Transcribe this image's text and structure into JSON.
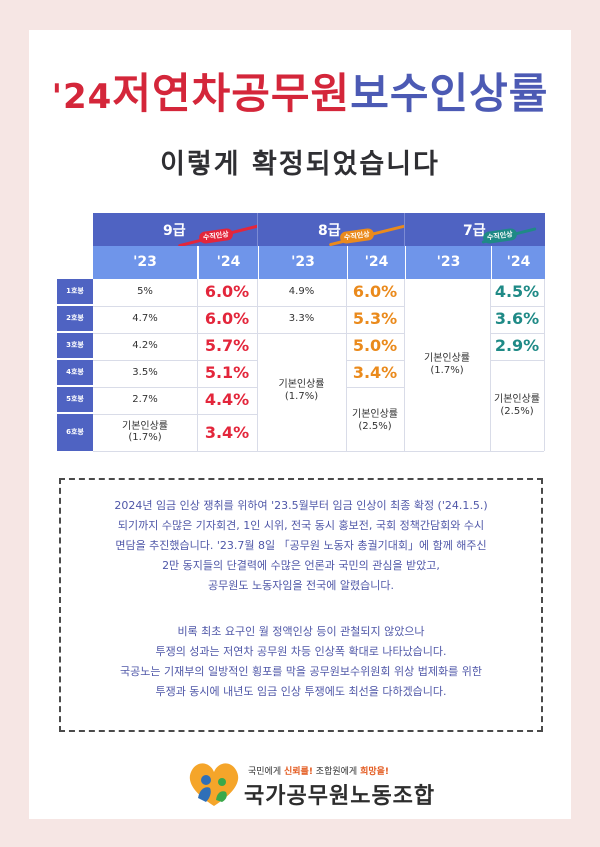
{
  "title": {
    "year": "'24",
    "part1": "저연차공무원",
    "part2": "보수인상률"
  },
  "subtitle": "이렇게 확정되었습니다",
  "table": {
    "grades": [
      {
        "label": "9급",
        "badge": "수직인상"
      },
      {
        "label": "8급",
        "badge": "수직인상"
      },
      {
        "label": "7급",
        "badge": "수직인상"
      }
    ],
    "years": [
      "'23",
      "'24"
    ],
    "rows": [
      "1호봉",
      "2호봉",
      "3호봉",
      "4호봉",
      "5호봉",
      "6호봉"
    ],
    "g9_23": [
      "5%",
      "4.7%",
      "4.2%",
      "3.5%",
      "2.7%"
    ],
    "g9_23_last": [
      "기본인상률",
      "(1.7%)"
    ],
    "g9_24": [
      "6.0%",
      "6.0%",
      "5.7%",
      "5.1%",
      "4.4%",
      "3.4%"
    ],
    "g8_23": [
      "4.9%",
      "3.3%"
    ],
    "g8_23_merged": [
      "기본인상률",
      "(1.7%)"
    ],
    "g8_24": [
      "6.0%",
      "5.3%",
      "5.0%",
      "3.4%"
    ],
    "g8_24_merged": [
      "기본인상률",
      "(2.5%)"
    ],
    "g7_23_merged": [
      "기본인상률",
      "(1.7%)"
    ],
    "g7_24": [
      "4.5%",
      "3.6%",
      "2.9%"
    ],
    "g7_24_merged": [
      "기본인상률",
      "(2.5%)"
    ]
  },
  "notice": {
    "para1": [
      "2024년 임금 인상 쟁취를 위하여 '23.5월부터 임금 인상이 최종 확정 ('24.1.5.)",
      "되기까지 수많은 기자회견, 1인 시위, 전국 동시 홍보전, 국회 정책간담회와 수시",
      "면담을 추진했습니다. '23.7월 8일 「공무원 노동자 총궐기대회」에 함께 해주신",
      "2만 동지들의 단결력에 수많은 언론과 국민의 관심을 받았고,",
      "공무원도 노동자임을 전국에 알렸습니다."
    ],
    "para2": [
      "비록 최초 요구인 월 정액인상 등이 관철되지 않았으나",
      "투쟁의 성과는 저연차 공무원 차등 인상폭 확대로 나타났습니다.",
      "국공노는 기재부의 일방적인 횡포를 막을 공무원보수위원회 위상 법제화를 위한",
      "투쟁과 동시에 내년도 임금 인상 투쟁에도 최선을 다하겠습니다."
    ]
  },
  "footer": {
    "slogan_a": "국민에게 ",
    "slogan_b": "신뢰를!",
    "slogan_c": " 조합원에게 ",
    "slogan_d": "희망을!",
    "org": "국가공무원노동조합"
  },
  "colors": {
    "red": "#e3263b",
    "orange": "#ea8a1c",
    "teal": "#1f8a86",
    "navy": "#4f63c2",
    "lightblue": "#6f95ea"
  }
}
